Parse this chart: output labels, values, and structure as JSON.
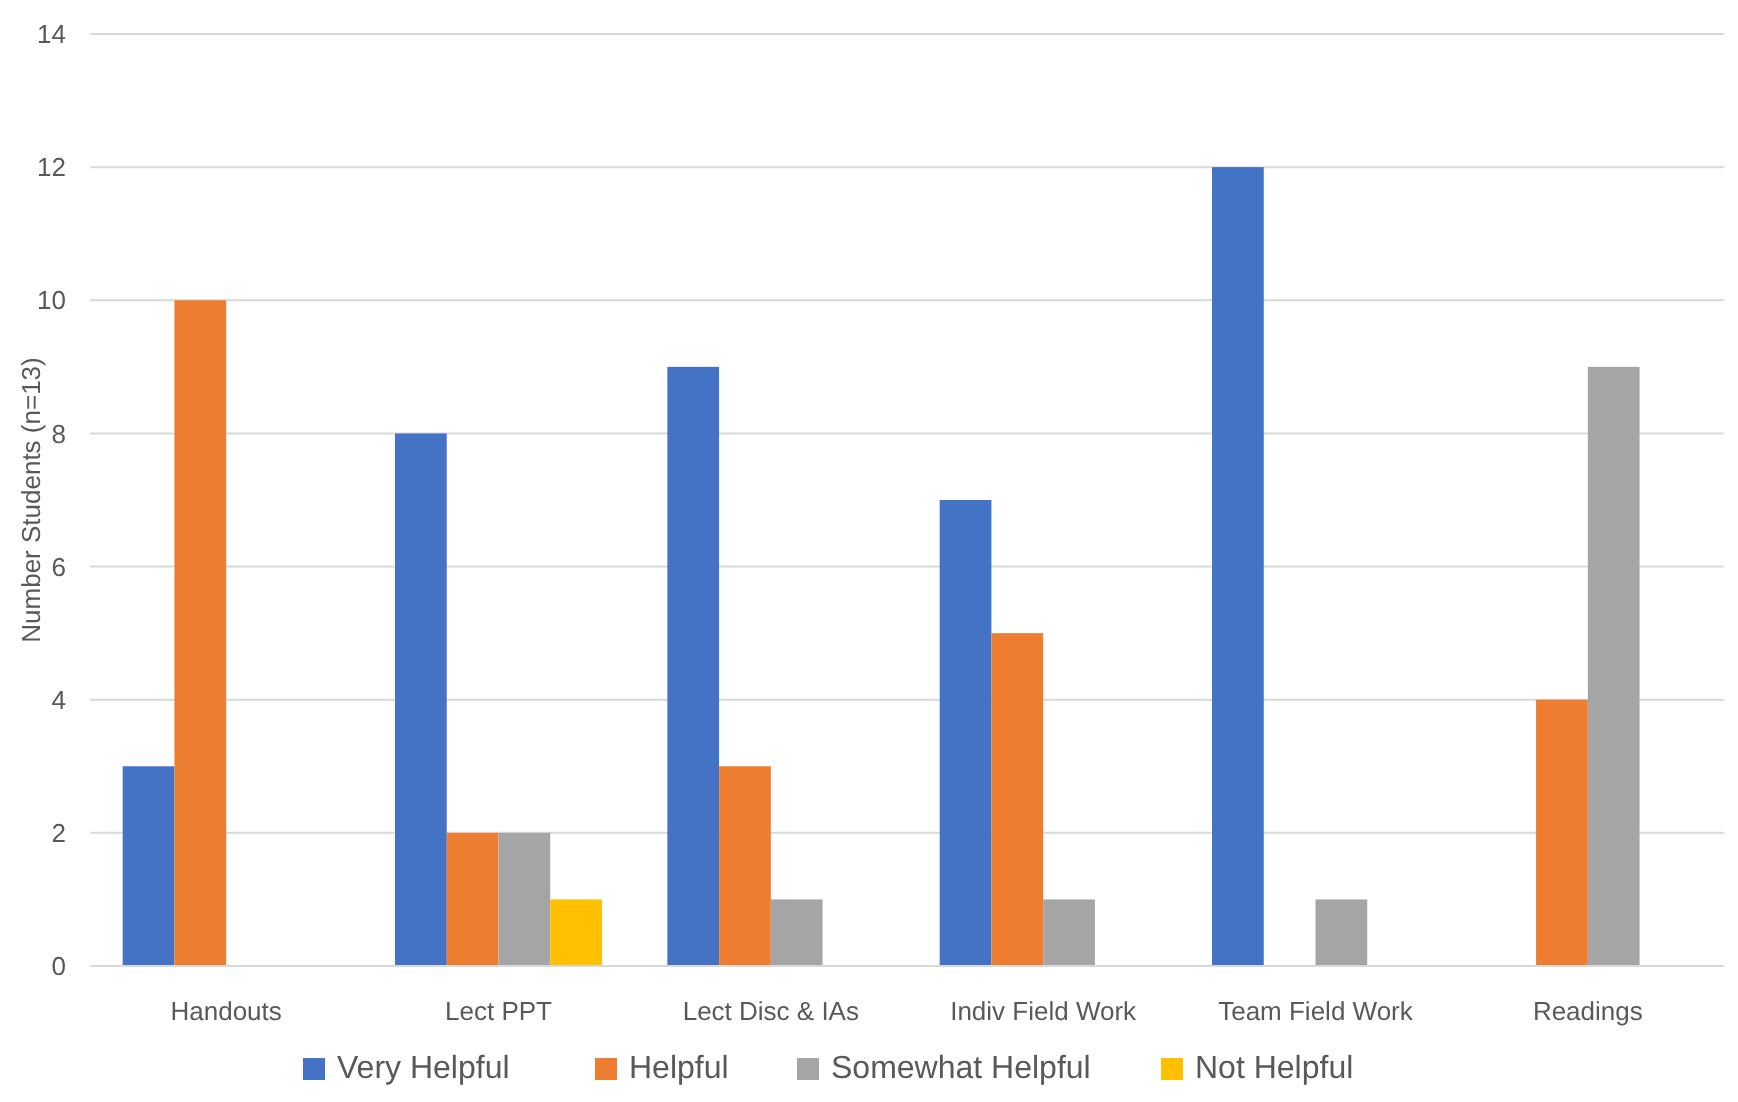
{
  "chart_data": {
    "type": "bar",
    "ylabel": "Number Students (n=13)",
    "categories": [
      "Handouts",
      "Lect PPT",
      "Lect Disc & IAs",
      "Indiv Field Work",
      "Team Field Work",
      "Readings"
    ],
    "series": [
      {
        "name": "Very Helpful",
        "color": "#4472c4",
        "values": [
          3,
          8,
          9,
          7,
          12,
          0
        ]
      },
      {
        "name": "Helpful",
        "color": "#ed7d31",
        "values": [
          10,
          2,
          3,
          5,
          0,
          4
        ]
      },
      {
        "name": "Somewhat Helpful",
        "color": "#a5a5a5",
        "values": [
          0,
          2,
          1,
          1,
          1,
          9
        ]
      },
      {
        "name": "Not Helpful",
        "color": "#ffc000",
        "values": [
          0,
          1,
          0,
          0,
          0,
          0
        ]
      }
    ],
    "ylim": [
      0,
      14
    ],
    "yticks": [
      0,
      2,
      4,
      6,
      8,
      10,
      12,
      14
    ],
    "grid": "y",
    "legend": "bottom"
  }
}
